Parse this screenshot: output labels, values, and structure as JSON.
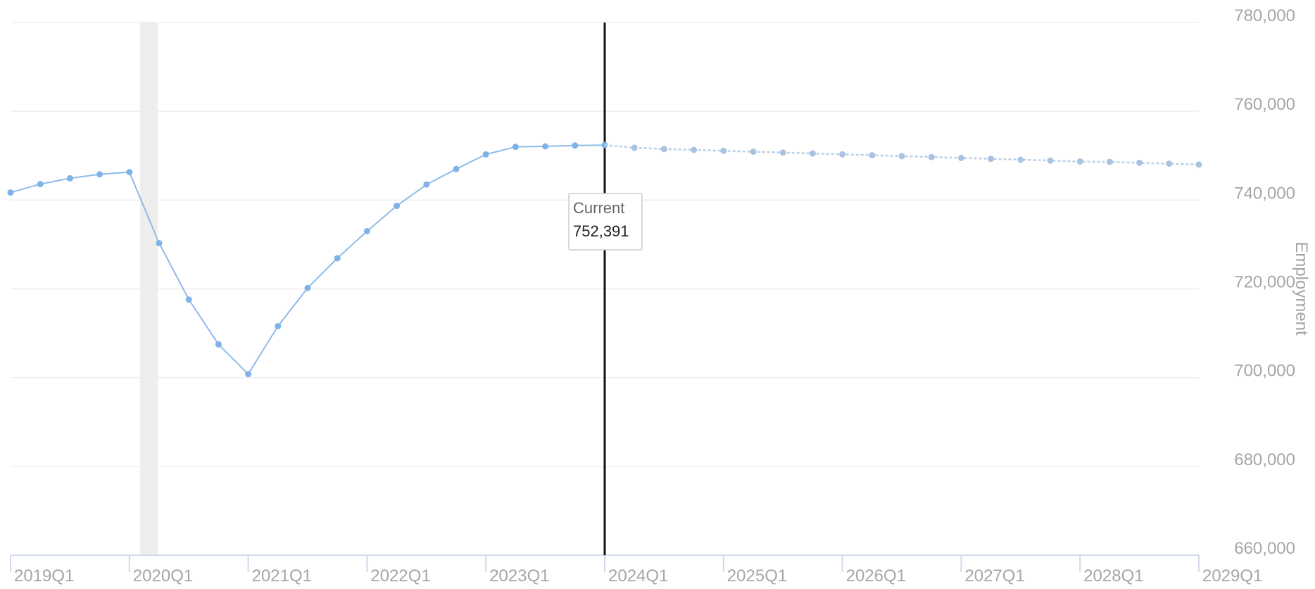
{
  "chart_data": {
    "type": "line",
    "title": "",
    "xlabel": "",
    "ylabel": "Employment",
    "ylim": [
      660000,
      780000
    ],
    "y_ticks": [
      660000,
      680000,
      700000,
      720000,
      740000,
      760000,
      780000
    ],
    "y_tick_labels": [
      "660,000",
      "680,000",
      "700,000",
      "720,000",
      "740,000",
      "760,000",
      "780,000"
    ],
    "x_ticks": [
      "2019Q1",
      "2020Q1",
      "2021Q1",
      "2022Q1",
      "2023Q1",
      "2024Q1",
      "2025Q1",
      "2026Q1",
      "2027Q1",
      "2028Q1",
      "2029Q1"
    ],
    "grid": true,
    "y_axis_position": "right",
    "recession_band": {
      "start": "2020Q1",
      "end": "2020Q2"
    },
    "current_marker": {
      "x": "2024Q1",
      "label": "Current",
      "value_label": "752,391",
      "value": 752391
    },
    "series": [
      {
        "values": [
          {
            "x": "2019Q1",
            "y": 741700
          },
          {
            "x": "2019Q2",
            "y": 743600
          },
          {
            "x": "2019Q3",
            "y": 744900
          },
          {
            "x": "2019Q4",
            "y": 745800
          },
          {
            "x": "2020Q1",
            "y": 746300
          },
          {
            "x": "2020Q2",
            "y": 730300
          },
          {
            "x": "2020Q3",
            "y": 717600
          },
          {
            "x": "2020Q4",
            "y": 707500
          },
          {
            "x": "2021Q1",
            "y": 700800
          },
          {
            "x": "2021Q2",
            "y": 711600
          },
          {
            "x": "2021Q3",
            "y": 720200
          },
          {
            "x": "2021Q4",
            "y": 726900
          },
          {
            "x": "2022Q1",
            "y": 733000
          },
          {
            "x": "2022Q2",
            "y": 738700
          },
          {
            "x": "2022Q3",
            "y": 743500
          },
          {
            "x": "2022Q4",
            "y": 747000
          },
          {
            "x": "2023Q1",
            "y": 750300
          },
          {
            "x": "2023Q2",
            "y": 752000
          },
          {
            "x": "2023Q3",
            "y": 752100
          },
          {
            "x": "2023Q4",
            "y": 752300
          },
          {
            "x": "2024Q1",
            "y": 752391
          }
        ]
      },
      {
        "values": [
          {
            "x": "2024Q1",
            "y": 752391
          },
          {
            "x": "2024Q2",
            "y": 751800
          },
          {
            "x": "2024Q3",
            "y": 751500
          },
          {
            "x": "2024Q4",
            "y": 751300
          },
          {
            "x": "2025Q1",
            "y": 751100
          },
          {
            "x": "2025Q2",
            "y": 750900
          },
          {
            "x": "2025Q3",
            "y": 750700
          },
          {
            "x": "2025Q4",
            "y": 750500
          },
          {
            "x": "2026Q1",
            "y": 750300
          },
          {
            "x": "2026Q2",
            "y": 750100
          },
          {
            "x": "2026Q3",
            "y": 749900
          },
          {
            "x": "2026Q4",
            "y": 749700
          },
          {
            "x": "2027Q1",
            "y": 749500
          },
          {
            "x": "2027Q2",
            "y": 749300
          },
          {
            "x": "2027Q3",
            "y": 749100
          },
          {
            "x": "2027Q4",
            "y": 748900
          },
          {
            "x": "2028Q1",
            "y": 748700
          },
          {
            "x": "2028Q2",
            "y": 748600
          },
          {
            "x": "2028Q3",
            "y": 748400
          },
          {
            "x": "2028Q4",
            "y": 748200
          },
          {
            "x": "2029Q1",
            "y": 748000
          }
        ]
      }
    ]
  },
  "colors": {
    "historical_line": "#8ebbea",
    "historical_point": "#7fb3e8",
    "forecast_line": "#b8cfe6",
    "forecast_point": "#aac3e0",
    "current_line": "#111111",
    "recession_band": "#eeeeee",
    "grid": "#eeeeee",
    "axis": "#cfd8ec",
    "tick_text": "#a6a6a6"
  }
}
